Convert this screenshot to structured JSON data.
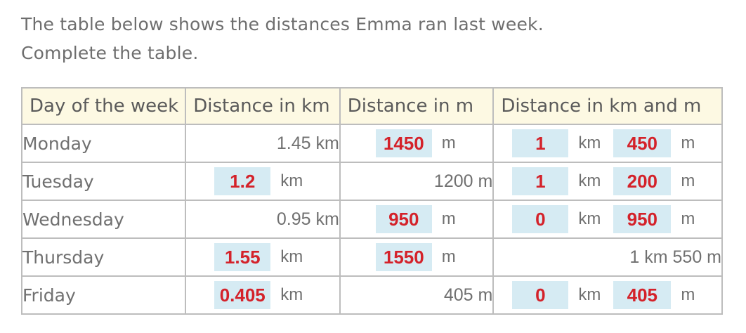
{
  "intro": {
    "line1": "The table below shows the distances Emma ran last week.",
    "line2": "Complete the table."
  },
  "table": {
    "headers": [
      "Day of the week",
      "Distance in km",
      "Distance in m",
      "Distance in km and m"
    ],
    "rows": [
      {
        "day": "Monday",
        "km": "1.45 km",
        "m_box": "1450",
        "m_unit": "m",
        "kmm_km": "1",
        "kmm_km_unit": "km",
        "kmm_m": "450",
        "kmm_m_unit": "m"
      },
      {
        "day": "Tuesday",
        "km_box": "1.2",
        "km_unit": "km",
        "m": "1200 m",
        "kmm_km": "1",
        "kmm_km_unit": "km",
        "kmm_m": "200",
        "kmm_m_unit": "m"
      },
      {
        "day": "Wednesday",
        "km": "0.95 km",
        "m_box": "950",
        "m_unit": "m",
        "kmm_km": "0",
        "kmm_km_unit": "km",
        "kmm_m": "950",
        "kmm_m_unit": "m"
      },
      {
        "day": "Thursday",
        "km_box": "1.55",
        "km_unit": "km",
        "m_box": "1550",
        "m_unit": "m",
        "kmm": "1 km 550 m"
      },
      {
        "day": "Friday",
        "km_box": "0.405",
        "km_unit": "km",
        "m": "405 m",
        "kmm_km": "0",
        "kmm_km_unit": "km",
        "kmm_m": "405",
        "kmm_m_unit": "m"
      }
    ]
  },
  "colors": {
    "answer_text": "#d4222a",
    "answer_box": "#d6ebf3",
    "header_bg": "#fdf9e3",
    "border": "#bdbdbd"
  }
}
